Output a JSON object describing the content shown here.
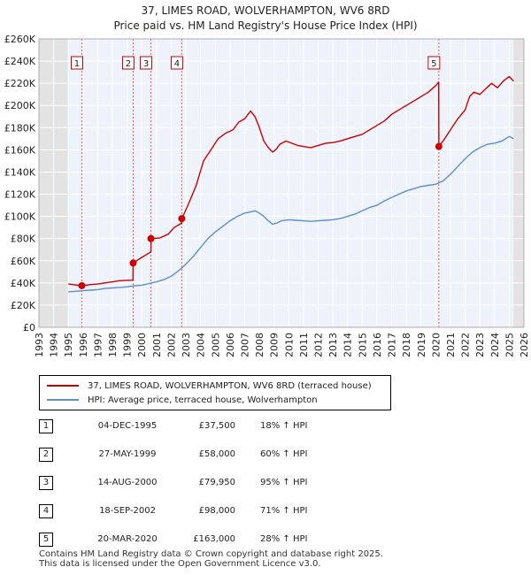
{
  "chart_data": {
    "type": "line",
    "title": "37, LIMES ROAD, WOLVERHAMPTON, WV6 8RD",
    "subtitle": "Price paid vs. HM Land Registry's House Price Index (HPI)",
    "xlabel": "",
    "ylabel": "",
    "xlim": [
      1993,
      2026
    ],
    "ylim": [
      0,
      260000
    ],
    "x_ticks": [
      "1993",
      "1994",
      "1995",
      "1996",
      "1997",
      "1998",
      "1999",
      "2000",
      "2001",
      "2002",
      "2003",
      "2004",
      "2005",
      "2006",
      "2007",
      "2008",
      "2009",
      "2010",
      "2011",
      "2012",
      "2013",
      "2014",
      "2015",
      "2016",
      "2017",
      "2018",
      "2019",
      "2020",
      "2021",
      "2022",
      "2023",
      "2024",
      "2025",
      "2026"
    ],
    "y_ticks": [
      "£0",
      "£20K",
      "£40K",
      "£60K",
      "£80K",
      "£100K",
      "£120K",
      "£140K",
      "£160K",
      "£180K",
      "£200K",
      "£220K",
      "£240K",
      "£260K"
    ],
    "grid": true,
    "shaded_ranges": [
      [
        1993,
        1995.0
      ],
      [
        2025.3,
        2026
      ]
    ],
    "series": [
      {
        "name": "37, LIMES ROAD, WOLVERHAMPTON, WV6 8RD (terraced house)",
        "color": "#cc0000",
        "x": [
          1995.0,
          1995.92,
          1996.5,
          1997,
          1997.5,
          1998,
          1998.5,
          1999.4,
          1999.41,
          2000,
          2000.62,
          2000.63,
          2001.2,
          2001.8,
          2002.2,
          2002.72,
          2002.73,
          2003.2,
          2003.7,
          2004.2,
          2004.7,
          2005.2,
          2005.7,
          2006.2,
          2006.6,
          2007.0,
          2007.4,
          2007.7,
          2008.0,
          2008.3,
          2008.6,
          2008.9,
          2009.1,
          2009.4,
          2009.8,
          2010.2,
          2010.6,
          2011.0,
          2011.5,
          2012.0,
          2012.5,
          2013.0,
          2013.5,
          2014.0,
          2014.5,
          2015.0,
          2015.5,
          2016.0,
          2016.5,
          2017.0,
          2017.5,
          2018.0,
          2018.5,
          2019.0,
          2019.5,
          2020.0,
          2020.2,
          2020.21,
          2020.5,
          2021.0,
          2021.5,
          2022.0,
          2022.3,
          2022.6,
          2023.0,
          2023.4,
          2023.8,
          2024.2,
          2024.6,
          2025.0,
          2025.3
        ],
        "values": [
          39000,
          37500,
          38500,
          39000,
          40000,
          41000,
          42000,
          42500,
          58000,
          63000,
          68000,
          79950,
          80500,
          84000,
          90000,
          94000,
          98000,
          112000,
          128000,
          150000,
          160000,
          170000,
          175000,
          178000,
          185000,
          188000,
          195000,
          190000,
          180000,
          168000,
          162000,
          158000,
          160000,
          165000,
          168000,
          166000,
          164000,
          163000,
          162000,
          164000,
          166000,
          166500,
          168000,
          170000,
          172000,
          174000,
          178000,
          182000,
          186000,
          192000,
          196000,
          200000,
          204000,
          208000,
          212000,
          218000,
          221000,
          163000,
          168000,
          178000,
          188000,
          196000,
          208000,
          212000,
          210000,
          215000,
          220000,
          216000,
          222000,
          226000,
          222000
        ]
      },
      {
        "name": "HPI: Average price, terraced house, Wolverhampton",
        "color": "#5b8fcf",
        "x": [
          1995.0,
          1995.5,
          1996.0,
          1996.5,
          1997,
          1997.5,
          1998,
          1998.5,
          1999,
          1999.5,
          2000,
          2000.5,
          2001,
          2001.5,
          2002,
          2002.5,
          2003,
          2003.5,
          2004,
          2004.5,
          2005,
          2005.5,
          2006,
          2006.5,
          2007,
          2007.4,
          2007.7,
          2008.0,
          2008.3,
          2008.6,
          2008.9,
          2009.2,
          2009.5,
          2010,
          2010.5,
          2011,
          2011.5,
          2012,
          2012.5,
          2013,
          2013.5,
          2014,
          2014.5,
          2015,
          2015.5,
          2016,
          2016.5,
          2017,
          2017.5,
          2018,
          2018.5,
          2019,
          2019.5,
          2020,
          2020.5,
          2021,
          2021.5,
          2022,
          2022.5,
          2023,
          2023.5,
          2024,
          2024.5,
          2025,
          2025.3
        ],
        "values": [
          32000,
          32500,
          33000,
          33500,
          34000,
          35000,
          35500,
          36000,
          36500,
          37500,
          38000,
          39500,
          41000,
          43000,
          46000,
          51000,
          57000,
          64000,
          72000,
          80000,
          86000,
          91000,
          96000,
          100000,
          103000,
          104000,
          105000,
          103000,
          100000,
          96000,
          93000,
          94000,
          96000,
          97000,
          96500,
          96000,
          95500,
          96000,
          96500,
          97000,
          98000,
          100000,
          102000,
          105000,
          108000,
          110000,
          114000,
          117000,
          120000,
          123000,
          125000,
          127000,
          128000,
          129000,
          132000,
          138000,
          145000,
          152000,
          158000,
          162000,
          165000,
          166000,
          168000,
          172000,
          170000
        ]
      }
    ],
    "sales": [
      {
        "label": "1",
        "x": 1995.92,
        "y": 37500
      },
      {
        "label": "2",
        "x": 1999.41,
        "y": 58000
      },
      {
        "label": "3",
        "x": 2000.62,
        "y": 79950
      },
      {
        "label": "4",
        "x": 2002.72,
        "y": 98000
      },
      {
        "label": "5",
        "x": 2020.21,
        "y": 163000
      }
    ]
  },
  "legend": {
    "property_label": "37, LIMES ROAD, WOLVERHAMPTON, WV6 8RD (terraced house)",
    "hpi_label": "HPI: Average price, terraced house, Wolverhampton",
    "property_color": "#cc0000",
    "hpi_color": "#5b8fcf"
  },
  "table": [
    {
      "num": "1",
      "date": "04-DEC-1995",
      "price": "£37,500",
      "hpi": "18% ↑ HPI"
    },
    {
      "num": "2",
      "date": "27-MAY-1999",
      "price": "£58,000",
      "hpi": "60% ↑ HPI"
    },
    {
      "num": "3",
      "date": "14-AUG-2000",
      "price": "£79,950",
      "hpi": "95% ↑ HPI"
    },
    {
      "num": "4",
      "date": "18-SEP-2002",
      "price": "£98,000",
      "hpi": "71% ↑ HPI"
    },
    {
      "num": "5",
      "date": "20-MAR-2020",
      "price": "£163,000",
      "hpi": "28% ↑ HPI"
    }
  ],
  "footer": {
    "line1": "Contains HM Land Registry data © Crown copyright and database right 2025.",
    "line2": "This data is licensed under the Open Government Licence v3.0."
  }
}
